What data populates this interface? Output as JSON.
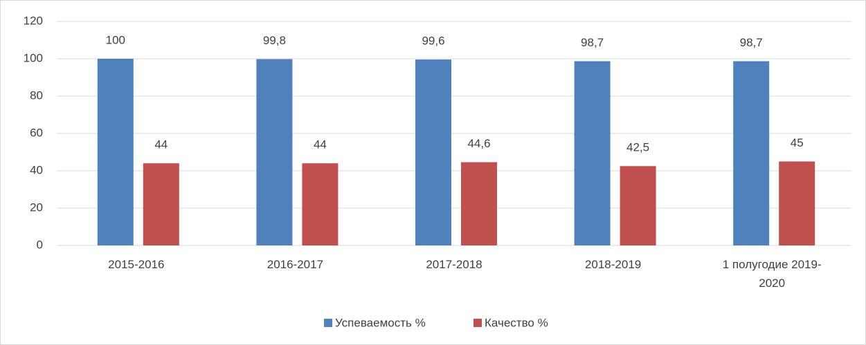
{
  "chart_data": {
    "type": "bar",
    "categories": [
      "2015-2016",
      "2016-2017",
      "2017-2018",
      "2018-2019",
      "1 полугодие 2019-2020"
    ],
    "series": [
      {
        "name": "Успеваемость %",
        "color": "#4f81bd",
        "values": [
          100,
          99.8,
          99.6,
          98.7,
          98.7
        ],
        "value_labels": [
          "100",
          "99,8",
          "99,6",
          "98,7",
          "98,7"
        ]
      },
      {
        "name": "Качество %",
        "color": "#c0504d",
        "values": [
          44,
          44,
          44.6,
          42.5,
          45
        ],
        "value_labels": [
          "44",
          "44",
          "44,6",
          "42,5",
          "45"
        ]
      }
    ],
    "ylim": [
      0,
      120
    ],
    "yticks": [
      0,
      20,
      40,
      60,
      80,
      100,
      120
    ],
    "grid": true,
    "legend": "bottom"
  }
}
